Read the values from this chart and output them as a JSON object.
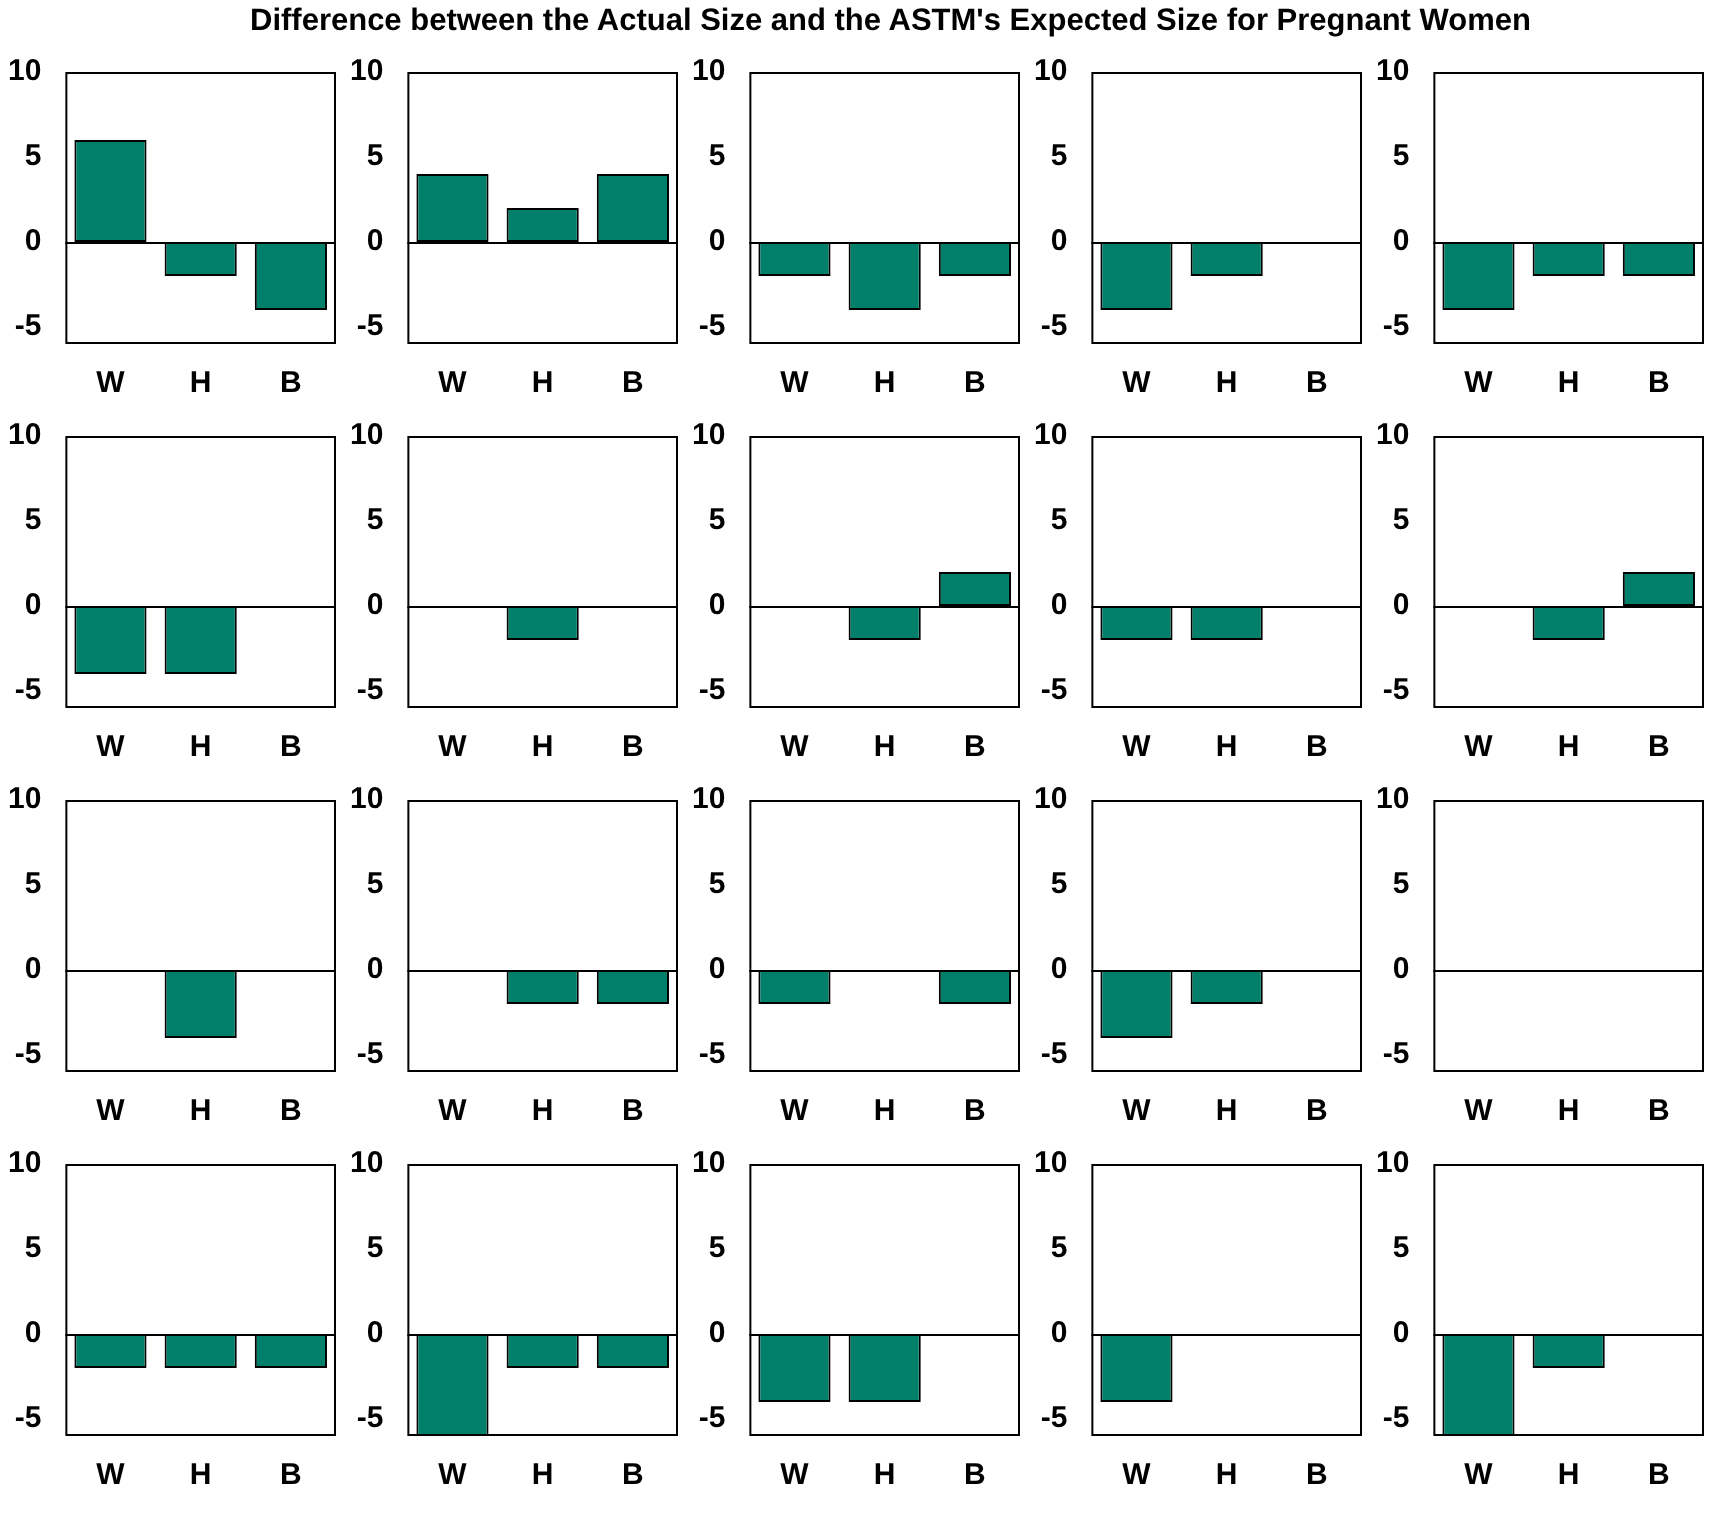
{
  "chart_data": [
    {
      "type": "bar",
      "categories": [
        "W",
        "H",
        "B"
      ],
      "values": [
        6,
        -2,
        -4
      ],
      "color": "#00806a",
      "ylim": [
        -6,
        10
      ],
      "yticks": [
        -5,
        0,
        5,
        10
      ]
    },
    {
      "type": "bar",
      "categories": [
        "W",
        "H",
        "B"
      ],
      "values": [
        4,
        2,
        4
      ],
      "color": "#00806a",
      "ylim": [
        -6,
        10
      ],
      "yticks": [
        -5,
        0,
        5,
        10
      ]
    },
    {
      "type": "bar",
      "title": "Difference between the Actual Size and the ASTM's Expected Size for Pregnant Women",
      "categories": [
        "W",
        "H",
        "B"
      ],
      "values": [
        -2,
        -4,
        -2
      ],
      "color": "#00806a",
      "ylim": [
        -6,
        10
      ],
      "yticks": [
        -5,
        0,
        5,
        10
      ]
    },
    {
      "type": "bar",
      "categories": [
        "W",
        "H",
        "B"
      ],
      "values": [
        -4,
        -2,
        0
      ],
      "color": "#00806a",
      "ylim": [
        -6,
        10
      ],
      "yticks": [
        -5,
        0,
        5,
        10
      ]
    },
    {
      "type": "bar",
      "categories": [
        "W",
        "H",
        "B"
      ],
      "values": [
        -4,
        -2,
        -2
      ],
      "color": "#00806a",
      "ylim": [
        -6,
        10
      ],
      "yticks": [
        -5,
        0,
        5,
        10
      ]
    },
    {
      "type": "bar",
      "categories": [
        "W",
        "H",
        "B"
      ],
      "values": [
        -4,
        -4,
        0
      ],
      "color": "#00806a",
      "ylim": [
        -6,
        10
      ],
      "yticks": [
        -5,
        0,
        5,
        10
      ]
    },
    {
      "type": "bar",
      "categories": [
        "W",
        "H",
        "B"
      ],
      "values": [
        0,
        -2,
        0
      ],
      "color": "#00806a",
      "ylim": [
        -6,
        10
      ],
      "yticks": [
        -5,
        0,
        5,
        10
      ]
    },
    {
      "type": "bar",
      "categories": [
        "W",
        "H",
        "B"
      ],
      "values": [
        0,
        -2,
        2
      ],
      "color": "#00806a",
      "ylim": [
        -6,
        10
      ],
      "yticks": [
        -5,
        0,
        5,
        10
      ]
    },
    {
      "type": "bar",
      "categories": [
        "W",
        "H",
        "B"
      ],
      "values": [
        -2,
        -2,
        0
      ],
      "color": "#00806a",
      "ylim": [
        -6,
        10
      ],
      "yticks": [
        -5,
        0,
        5,
        10
      ]
    },
    {
      "type": "bar",
      "categories": [
        "W",
        "H",
        "B"
      ],
      "values": [
        0,
        -2,
        2
      ],
      "color": "#00806a",
      "ylim": [
        -6,
        10
      ],
      "yticks": [
        -5,
        0,
        5,
        10
      ]
    },
    {
      "type": "bar",
      "categories": [
        "W",
        "H",
        "B"
      ],
      "values": [
        0,
        -4,
        0
      ],
      "color": "#00806a",
      "ylim": [
        -6,
        10
      ],
      "yticks": [
        -5,
        0,
        5,
        10
      ]
    },
    {
      "type": "bar",
      "categories": [
        "W",
        "H",
        "B"
      ],
      "values": [
        0,
        -2,
        -2
      ],
      "color": "#00806a",
      "ylim": [
        -6,
        10
      ],
      "yticks": [
        -5,
        0,
        5,
        10
      ]
    },
    {
      "type": "bar",
      "categories": [
        "W",
        "H",
        "B"
      ],
      "values": [
        -2,
        0,
        -2
      ],
      "color": "#00806a",
      "ylim": [
        -6,
        10
      ],
      "yticks": [
        -5,
        0,
        5,
        10
      ]
    },
    {
      "type": "bar",
      "categories": [
        "W",
        "H",
        "B"
      ],
      "values": [
        -4,
        -2,
        0
      ],
      "color": "#00806a",
      "ylim": [
        -6,
        10
      ],
      "yticks": [
        -5,
        0,
        5,
        10
      ]
    },
    {
      "type": "bar",
      "categories": [
        "W",
        "H",
        "B"
      ],
      "values": [
        0,
        0,
        0
      ],
      "color": "#00806a",
      "ylim": [
        -6,
        10
      ],
      "yticks": [
        -5,
        0,
        5,
        10
      ]
    },
    {
      "type": "bar",
      "categories": [
        "W",
        "H",
        "B"
      ],
      "values": [
        -2,
        -2,
        -2
      ],
      "color": "#00806a",
      "ylim": [
        -6,
        10
      ],
      "yticks": [
        -5,
        0,
        5,
        10
      ]
    },
    {
      "type": "bar",
      "categories": [
        "W",
        "H",
        "B"
      ],
      "values": [
        -6,
        -2,
        -2
      ],
      "color": "#00806a",
      "ylim": [
        -6,
        10
      ],
      "yticks": [
        -5,
        0,
        5,
        10
      ]
    },
    {
      "type": "bar",
      "categories": [
        "W",
        "H",
        "B"
      ],
      "values": [
        -4,
        -4,
        0
      ],
      "color": "#00806a",
      "ylim": [
        -6,
        10
      ],
      "yticks": [
        -5,
        0,
        5,
        10
      ]
    },
    {
      "type": "bar",
      "categories": [
        "W",
        "H",
        "B"
      ],
      "values": [
        -4,
        0,
        0
      ],
      "color": "#00806a",
      "ylim": [
        -6,
        10
      ],
      "yticks": [
        -5,
        0,
        5,
        10
      ]
    },
    {
      "type": "bar",
      "categories": [
        "W",
        "H",
        "B"
      ],
      "values": [
        -6,
        -2,
        0
      ],
      "color": "#00806a",
      "ylim": [
        -6,
        10
      ],
      "yticks": [
        -5,
        0,
        5,
        10
      ]
    }
  ]
}
